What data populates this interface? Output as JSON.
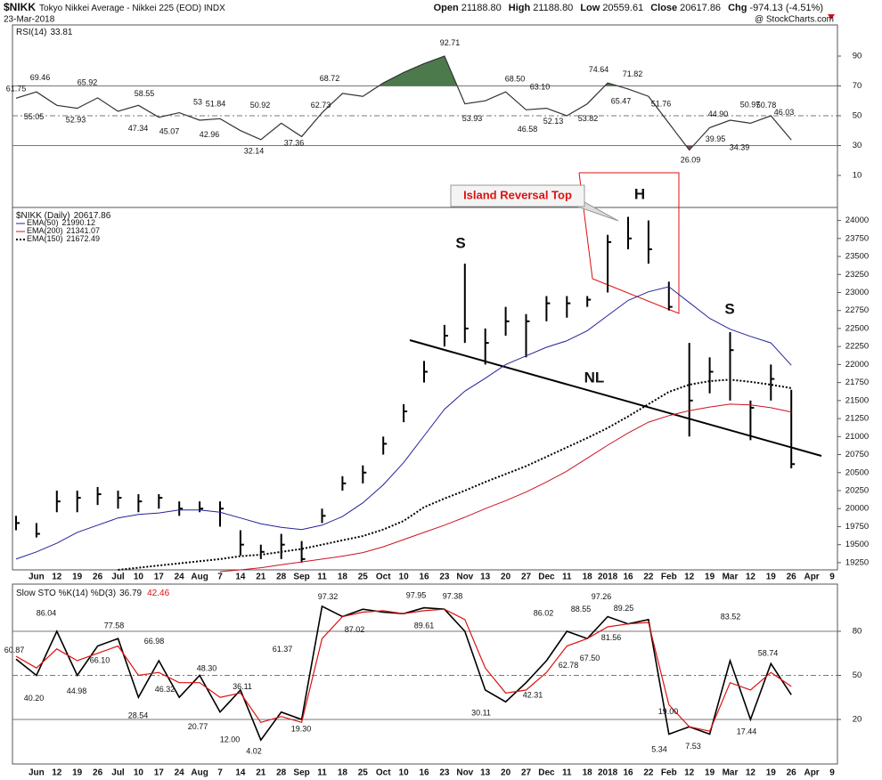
{
  "header": {
    "symbol": "$NIKK",
    "name": "Tokyo Nikkei Average - Nikkei 225 (EOD) INDX",
    "date": "23-Mar-2018",
    "credit": "@ StockCharts.com",
    "quote": [
      {
        "label": "Open",
        "value": "21188.80"
      },
      {
        "label": "High",
        "value": "21188.80"
      },
      {
        "label": "Low",
        "value": "20559.61"
      },
      {
        "label": "Close",
        "value": "20617.86"
      },
      {
        "label": "Chg",
        "value": "-974.13 (-4.51%)"
      }
    ]
  },
  "chart_data": [
    {
      "type": "line",
      "title": "RSI(14)",
      "color": "#333333",
      "ylim": [
        -11.5,
        110.9
      ],
      "yticks": [
        10,
        30,
        50,
        70,
        90
      ],
      "overbought": 70,
      "oversold": 30,
      "midline": 50,
      "fill_colors": {
        "overbought": "#4d7a4d",
        "oversold": "#8a5050"
      },
      "values": [
        61.75,
        66,
        57,
        55,
        62,
        53,
        57,
        49,
        52,
        47,
        48,
        40,
        34,
        45,
        36,
        52,
        65,
        63,
        72,
        79,
        85,
        90,
        58,
        60,
        66,
        54,
        55,
        50,
        58,
        72,
        68,
        63,
        45,
        27,
        42,
        47,
        45,
        50,
        33.81,
        null,
        null
      ],
      "point_labels": [
        61.75,
        69.46,
        55.05,
        65.92,
        52.93,
        58.55,
        47.34,
        53,
        51.84,
        45.07,
        42.96,
        50.92,
        32.14,
        37.36,
        68.72,
        62.73,
        92.71,
        53.93,
        {
          "value": 68.5,
          "label": "68.50"
        },
        {
          "value": 63.1,
          "label": "63.10"
        },
        46.58,
        52.13,
        53.82,
        74.64,
        71.82,
        65.47,
        51.76,
        26.09,
        39.95,
        {
          "value": 44.9,
          "label": "44.90"
        },
        50.97,
        34.39,
        50.78,
        46.03
      ]
    },
    {
      "type": "ohlc",
      "ylim": [
        19150,
        24180
      ],
      "yticks": [
        19250,
        19500,
        19750,
        20000,
        20250,
        20500,
        20750,
        21000,
        21250,
        21500,
        21750,
        22000,
        22250,
        22500,
        22750,
        23000,
        23250,
        23500,
        23750,
        24000
      ],
      "categories": [
        null,
        "Jun",
        "12",
        "19",
        "26",
        "Jul",
        "10",
        "17",
        "24",
        "Aug",
        "7",
        "14",
        "21",
        "28",
        "Sep",
        "11",
        "18",
        "25",
        "Oct",
        "10",
        "16",
        "23",
        "Nov",
        "13",
        "20",
        "27",
        "Dec",
        "11",
        "18",
        "2018",
        "16",
        "22",
        "Feb",
        "12",
        "19",
        "Mar",
        "12",
        "19",
        "26",
        "Apr",
        "9"
      ],
      "ohlc": {
        "name": "$NIKK (Daily)",
        "color": "#000000",
        "high": [
          19900,
          19800,
          20250,
          20250,
          20300,
          20250,
          20200,
          20200,
          20100,
          20100,
          20100,
          19700,
          19500,
          19650,
          19550,
          20000,
          20450,
          20600,
          21000,
          21450,
          22050,
          22550,
          23400,
          22500,
          22800,
          22700,
          22950,
          22950,
          22950,
          23800,
          24050,
          24000,
          23150,
          22300,
          22100,
          22450,
          21500,
          22000,
          21650,
          null,
          null
        ],
        "low": [
          19700,
          19600,
          19950,
          19950,
          20050,
          20000,
          19950,
          20000,
          19900,
          19950,
          19750,
          19350,
          19300,
          19300,
          19250,
          19800,
          20250,
          20350,
          20750,
          21200,
          21750,
          22250,
          22300,
          22000,
          22400,
          22100,
          22600,
          22650,
          22800,
          23000,
          23600,
          23400,
          22750,
          21000,
          21600,
          21500,
          20950,
          21500,
          20559.61,
          null,
          null
        ],
        "close": [
          19800,
          19650,
          20100,
          20150,
          20200,
          20150,
          20100,
          20150,
          20000,
          20000,
          20000,
          19500,
          19400,
          19500,
          19300,
          19900,
          20350,
          20500,
          20900,
          21350,
          21900,
          22400,
          22500,
          22300,
          22600,
          22600,
          22850,
          22850,
          22900,
          23700,
          23750,
          23600,
          22800,
          21500,
          21900,
          22200,
          21400,
          21800,
          20617.86,
          null,
          null
        ]
      },
      "series": [
        {
          "name": "EMA(50)",
          "color": "#22229a",
          "dash": "solid",
          "values": [
            19300,
            19400,
            19520,
            19670,
            19770,
            19870,
            19920,
            19940,
            19980,
            19980,
            19950,
            19870,
            19790,
            19740,
            19710,
            19770,
            19890,
            20080,
            20330,
            20640,
            21010,
            21380,
            21630,
            21810,
            22000,
            22120,
            22240,
            22330,
            22470,
            22680,
            22890,
            23010,
            23080,
            22860,
            22640,
            22490,
            22390,
            22300,
            21990.12,
            null,
            null
          ]
        },
        {
          "name": "EMA(200)",
          "color": "#cc1122",
          "dash": "solid",
          "values": [
            null,
            null,
            null,
            null,
            null,
            null,
            null,
            null,
            null,
            null,
            19125,
            19150,
            19180,
            19220,
            19260,
            19300,
            19340,
            19390,
            19470,
            19570,
            19670,
            19770,
            19880,
            20000,
            20110,
            20230,
            20370,
            20520,
            20700,
            20880,
            21050,
            21200,
            21290,
            21360,
            21410,
            21450,
            21440,
            21400,
            21341.07,
            null,
            null
          ]
        },
        {
          "name": "EMA(150)",
          "color": "#000000",
          "dash": "dotted",
          "values": [
            null,
            null,
            null,
            null,
            null,
            19150,
            19180,
            19210,
            19240,
            19270,
            19300,
            19340,
            19360,
            19400,
            19440,
            19500,
            19560,
            19620,
            19710,
            19830,
            20020,
            20140,
            20250,
            20370,
            20480,
            20590,
            20720,
            20850,
            20980,
            21120,
            21280,
            21450,
            21620,
            21720,
            21770,
            21790,
            21760,
            21720,
            21672.49,
            null,
            null
          ]
        }
      ],
      "annotations": {
        "island": "Island Reversal Top",
        "head": "H",
        "left_shoulder": "S",
        "right_shoulder": "S",
        "neckline": "NL"
      }
    },
    {
      "type": "line",
      "title": "Slow STO %K(14) %D(3)",
      "ylim": [
        -10.3,
        112.1
      ],
      "yticks": [
        20,
        50,
        80
      ],
      "overbought": 80,
      "oversold": 20,
      "midline": 50,
      "categories": [
        null,
        "Jun",
        "12",
        "19",
        "26",
        "Jul",
        "10",
        "17",
        "24",
        "Aug",
        "7",
        "14",
        "21",
        "28",
        "Sep",
        "11",
        "18",
        "25",
        "Oct",
        "10",
        "16",
        "23",
        "Nov",
        "13",
        "20",
        "27",
        "Dec",
        "11",
        "18",
        "2018",
        "16",
        "22",
        "Feb",
        "12",
        "19",
        "Mar",
        "12",
        "19",
        "26",
        "Apr",
        "9"
      ],
      "series": [
        {
          "color": "#000000",
          "values": [
            61,
            50,
            80,
            50,
            70,
            75,
            35,
            60,
            35,
            50,
            25,
            40,
            6,
            25,
            20,
            97,
            90,
            95,
            93,
            92,
            96,
            95,
            80,
            40,
            32,
            45,
            60,
            80,
            75,
            90,
            85,
            88,
            10,
            15,
            10,
            60,
            20,
            58,
            36.79,
            null,
            null
          ]
        },
        {
          "color": "#dd1111",
          "values": [
            63,
            55,
            68,
            60,
            65,
            70,
            50,
            52,
            45,
            45,
            35,
            38,
            18,
            22,
            18,
            75,
            90,
            93,
            94,
            92,
            94,
            95,
            88,
            55,
            38,
            40,
            52,
            70,
            75,
            83,
            85,
            86,
            30,
            15,
            12,
            45,
            40,
            52,
            42.46,
            null,
            null
          ]
        }
      ],
      "point_labels": [
        60.87,
        86.04,
        {
          "value": 40.2,
          "label": "40.20"
        },
        77.58,
        {
          "value": 66.1,
          "label": "66.10"
        },
        44.98,
        66.98,
        46.32,
        28.54,
        {
          "value": 48.3,
          "label": "48.30"
        },
        36.11,
        20.77,
        {
          "value": 12,
          "label": "12.00"
        },
        4.02,
        61.37,
        {
          "value": 19.3,
          "label": "19.30"
        },
        97.32,
        87.02,
        97.95,
        89.61,
        97.38,
        30.11,
        42.31,
        86.02,
        62.78,
        88.55,
        97.26,
        81.56,
        {
          "value": 67.5,
          "label": "67.50"
        },
        89.25,
        {
          "value": 19,
          "label": "19.00"
        },
        5.34,
        7.53,
        83.52,
        17.44,
        58.74
      ]
    }
  ]
}
